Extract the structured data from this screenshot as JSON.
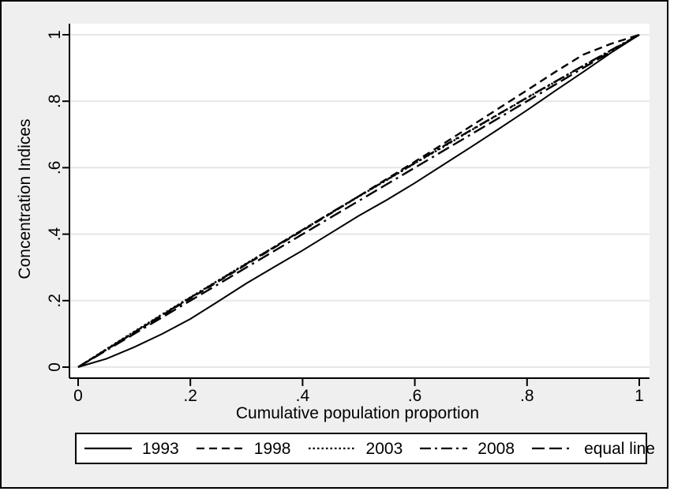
{
  "figure": {
    "background": "#efefef",
    "border_color": "#000000"
  },
  "plot": {
    "background": "#ffffff",
    "grid_color": "#e6e6e6",
    "line_color": "#000000",
    "axis_color": "#000000"
  },
  "chart_data": {
    "type": "line",
    "title": "",
    "xlabel": "Cumulative population proportion",
    "ylabel": "Concentration Indices",
    "xlim": [
      0,
      1
    ],
    "ylim": [
      0,
      1
    ],
    "grid": "horizontal",
    "legend_position": "bottom",
    "xticks": [
      "0",
      ".2",
      ".4",
      ".6",
      ".8",
      "1"
    ],
    "xtick_values": [
      0,
      0.2,
      0.4,
      0.6,
      0.8,
      1
    ],
    "yticks": [
      "0",
      ".2",
      ".4",
      ".6",
      ".8",
      "1"
    ],
    "ytick_values": [
      0,
      0.2,
      0.4,
      0.6,
      0.8,
      1
    ],
    "x": [
      0,
      0.05,
      0.1,
      0.15,
      0.2,
      0.25,
      0.3,
      0.35,
      0.4,
      0.45,
      0.5,
      0.55,
      0.6,
      0.65,
      0.7,
      0.75,
      0.8,
      0.85,
      0.9,
      0.95,
      1
    ],
    "series": [
      {
        "name": "1993",
        "style": "solid",
        "values": [
          0,
          0.025,
          0.06,
          0.1,
          0.145,
          0.198,
          0.252,
          0.302,
          0.351,
          0.403,
          0.455,
          0.503,
          0.554,
          0.608,
          0.662,
          0.717,
          0.773,
          0.831,
          0.888,
          0.946,
          1
        ]
      },
      {
        "name": "1998",
        "style": "dash",
        "values": [
          0,
          0.052,
          0.104,
          0.156,
          0.207,
          0.258,
          0.309,
          0.36,
          0.411,
          0.462,
          0.514,
          0.566,
          0.618,
          0.671,
          0.725,
          0.779,
          0.833,
          0.888,
          0.94,
          0.973,
          1
        ]
      },
      {
        "name": "2003",
        "style": "dot",
        "values": [
          0,
          0.054,
          0.107,
          0.159,
          0.21,
          0.261,
          0.312,
          0.362,
          0.413,
          0.463,
          0.513,
          0.563,
          0.613,
          0.662,
          0.712,
          0.761,
          0.81,
          0.858,
          0.906,
          0.953,
          1
        ]
      },
      {
        "name": "2008",
        "style": "dash_dot",
        "values": [
          0,
          0.053,
          0.105,
          0.157,
          0.209,
          0.26,
          0.311,
          0.362,
          0.413,
          0.464,
          0.514,
          0.564,
          0.614,
          0.664,
          0.713,
          0.762,
          0.811,
          0.859,
          0.907,
          0.954,
          1
        ]
      },
      {
        "name": "equal line",
        "style": "longdash_dot",
        "values": [
          0,
          0.05,
          0.1,
          0.15,
          0.2,
          0.25,
          0.3,
          0.35,
          0.4,
          0.45,
          0.5,
          0.55,
          0.6,
          0.65,
          0.7,
          0.75,
          0.8,
          0.85,
          0.9,
          0.95,
          1
        ]
      }
    ]
  }
}
